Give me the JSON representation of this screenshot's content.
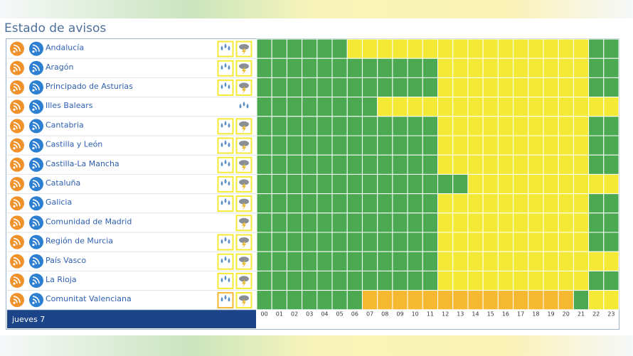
{
  "header": {
    "title": "Estado de avisos"
  },
  "footer": {
    "day": "jueves 7"
  },
  "hours": [
    "00",
    "01",
    "02",
    "03",
    "04",
    "05",
    "06",
    "07",
    "08",
    "09",
    "10",
    "11",
    "12",
    "13",
    "14",
    "15",
    "16",
    "17",
    "18",
    "19",
    "20",
    "21",
    "22",
    "23"
  ],
  "rows": [
    {
      "name": "Andalucía",
      "rain": "#f4e935",
      "storm": "#f4e935",
      "cells": [
        "#4aa951",
        "#4aa951",
        "#4aa951",
        "#4aa951",
        "#4aa951",
        "#4aa951",
        "#f4e935",
        "#f4e935",
        "#f4e935",
        "#f4e935",
        "#f4e935",
        "#f4e935",
        "#f4e935",
        "#f4e935",
        "#f4e935",
        "#f4e935",
        "#f4e935",
        "#f4e935",
        "#f4e935",
        "#f4e935",
        "#f4e935",
        "#f4e935",
        "#4aa951",
        "#4aa951"
      ]
    },
    {
      "name": "Aragón",
      "rain": "#f4e935",
      "storm": "#f4e935",
      "cells": [
        "#4aa951",
        "#4aa951",
        "#4aa951",
        "#4aa951",
        "#4aa951",
        "#4aa951",
        "#4aa951",
        "#4aa951",
        "#4aa951",
        "#4aa951",
        "#4aa951",
        "#4aa951",
        "#f4e935",
        "#f4e935",
        "#f4e935",
        "#f4e935",
        "#f4e935",
        "#f4e935",
        "#f4e935",
        "#f4e935",
        "#f4e935",
        "#f4e935",
        "#4aa951",
        "#4aa951"
      ]
    },
    {
      "name": "Principado de Asturias",
      "rain": "#f4e935",
      "storm": "#f4e935",
      "cells": [
        "#4aa951",
        "#4aa951",
        "#4aa951",
        "#4aa951",
        "#4aa951",
        "#4aa951",
        "#4aa951",
        "#4aa951",
        "#4aa951",
        "#4aa951",
        "#4aa951",
        "#4aa951",
        "#f4e935",
        "#f4e935",
        "#f4e935",
        "#f4e935",
        "#f4e935",
        "#f4e935",
        "#f4e935",
        "#f4e935",
        "#f4e935",
        "#f4e935",
        "#4aa951",
        "#4aa951"
      ]
    },
    {
      "name": "Illes Balears",
      "rain": "#ffffff",
      "storm": null,
      "cells": [
        "#4aa951",
        "#4aa951",
        "#4aa951",
        "#4aa951",
        "#4aa951",
        "#4aa951",
        "#4aa951",
        "#4aa951",
        "#f4e935",
        "#f4e935",
        "#f4e935",
        "#f4e935",
        "#f4e935",
        "#f4e935",
        "#f4e935",
        "#f4e935",
        "#f4e935",
        "#f4e935",
        "#f4e935",
        "#f4e935",
        "#f4e935",
        "#f4e935",
        "#f4e935",
        "#f4e935"
      ]
    },
    {
      "name": "Cantabria",
      "rain": "#f4e935",
      "storm": "#f4e935",
      "cells": [
        "#4aa951",
        "#4aa951",
        "#4aa951",
        "#4aa951",
        "#4aa951",
        "#4aa951",
        "#4aa951",
        "#4aa951",
        "#4aa951",
        "#4aa951",
        "#4aa951",
        "#4aa951",
        "#f4e935",
        "#f4e935",
        "#f4e935",
        "#f4e935",
        "#f4e935",
        "#f4e935",
        "#f4e935",
        "#f4e935",
        "#f4e935",
        "#f4e935",
        "#4aa951",
        "#4aa951"
      ]
    },
    {
      "name": "Castilla y León",
      "rain": "#f4e935",
      "storm": "#f4e935",
      "cells": [
        "#4aa951",
        "#4aa951",
        "#4aa951",
        "#4aa951",
        "#4aa951",
        "#4aa951",
        "#4aa951",
        "#4aa951",
        "#4aa951",
        "#4aa951",
        "#4aa951",
        "#4aa951",
        "#f4e935",
        "#f4e935",
        "#f4e935",
        "#f4e935",
        "#f4e935",
        "#f4e935",
        "#f4e935",
        "#f4e935",
        "#f4e935",
        "#f4e935",
        "#4aa951",
        "#4aa951"
      ]
    },
    {
      "name": "Castilla-La Mancha",
      "rain": "#f4e935",
      "storm": "#f4e935",
      "cells": [
        "#4aa951",
        "#4aa951",
        "#4aa951",
        "#4aa951",
        "#4aa951",
        "#4aa951",
        "#4aa951",
        "#4aa951",
        "#4aa951",
        "#4aa951",
        "#4aa951",
        "#4aa951",
        "#f4e935",
        "#f4e935",
        "#f4e935",
        "#f4e935",
        "#f4e935",
        "#f4e935",
        "#f4e935",
        "#f4e935",
        "#f4e935",
        "#f4e935",
        "#4aa951",
        "#4aa951"
      ]
    },
    {
      "name": "Cataluña",
      "rain": "#f4e935",
      "storm": "#f4e935",
      "cells": [
        "#4aa951",
        "#4aa951",
        "#4aa951",
        "#4aa951",
        "#4aa951",
        "#4aa951",
        "#4aa951",
        "#4aa951",
        "#4aa951",
        "#4aa951",
        "#4aa951",
        "#4aa951",
        "#4aa951",
        "#4aa951",
        "#f4e935",
        "#f4e935",
        "#f4e935",
        "#f4e935",
        "#f4e935",
        "#f4e935",
        "#f4e935",
        "#f4e935",
        "#f4e935",
        "#f4e935"
      ]
    },
    {
      "name": "Galicia",
      "rain": "#f4e935",
      "storm": "#f4e935",
      "cells": [
        "#4aa951",
        "#4aa951",
        "#4aa951",
        "#4aa951",
        "#4aa951",
        "#4aa951",
        "#4aa951",
        "#4aa951",
        "#4aa951",
        "#4aa951",
        "#4aa951",
        "#4aa951",
        "#f4e935",
        "#f4e935",
        "#f4e935",
        "#f4e935",
        "#f4e935",
        "#f4e935",
        "#f4e935",
        "#f4e935",
        "#f4e935",
        "#f4e935",
        "#4aa951",
        "#4aa951"
      ]
    },
    {
      "name": "Comunidad de Madrid",
      "rain": null,
      "storm": "#f4e935",
      "cells": [
        "#4aa951",
        "#4aa951",
        "#4aa951",
        "#4aa951",
        "#4aa951",
        "#4aa951",
        "#4aa951",
        "#4aa951",
        "#4aa951",
        "#4aa951",
        "#4aa951",
        "#4aa951",
        "#f4e935",
        "#f4e935",
        "#f4e935",
        "#f4e935",
        "#f4e935",
        "#f4e935",
        "#f4e935",
        "#f4e935",
        "#f4e935",
        "#f4e935",
        "#4aa951",
        "#4aa951"
      ]
    },
    {
      "name": "Región de Murcia",
      "rain": "#f4e935",
      "storm": "#f4e935",
      "cells": [
        "#4aa951",
        "#4aa951",
        "#4aa951",
        "#4aa951",
        "#4aa951",
        "#4aa951",
        "#4aa951",
        "#4aa951",
        "#4aa951",
        "#4aa951",
        "#4aa951",
        "#4aa951",
        "#f4e935",
        "#f4e935",
        "#f4e935",
        "#f4e935",
        "#f4e935",
        "#f4e935",
        "#f4e935",
        "#f4e935",
        "#f4e935",
        "#f4e935",
        "#4aa951",
        "#4aa951"
      ]
    },
    {
      "name": "País Vasco",
      "rain": "#f4e935",
      "storm": "#f4e935",
      "cells": [
        "#4aa951",
        "#4aa951",
        "#4aa951",
        "#4aa951",
        "#4aa951",
        "#4aa951",
        "#4aa951",
        "#4aa951",
        "#4aa951",
        "#4aa951",
        "#4aa951",
        "#4aa951",
        "#f4e935",
        "#f4e935",
        "#f4e935",
        "#f4e935",
        "#f4e935",
        "#f4e935",
        "#f4e935",
        "#f4e935",
        "#f4e935",
        "#f4e935",
        "#f4e935",
        "#f4e935"
      ]
    },
    {
      "name": "La Rioja",
      "rain": "#f4e935",
      "storm": "#f4e935",
      "cells": [
        "#4aa951",
        "#4aa951",
        "#4aa951",
        "#4aa951",
        "#4aa951",
        "#4aa951",
        "#4aa951",
        "#4aa951",
        "#4aa951",
        "#4aa951",
        "#4aa951",
        "#4aa951",
        "#f4e935",
        "#f4e935",
        "#f4e935",
        "#f4e935",
        "#f4e935",
        "#f4e935",
        "#f4e935",
        "#f4e935",
        "#f4e935",
        "#f4e935",
        "#4aa951",
        "#4aa951"
      ]
    },
    {
      "name": "Comunitat Valenciana",
      "rain": "#f6b731",
      "storm": "#f4e935",
      "cells": [
        "#4aa951",
        "#4aa951",
        "#4aa951",
        "#4aa951",
        "#4aa951",
        "#4aa951",
        "#4aa951",
        "#f6b731",
        "#f6b731",
        "#f6b731",
        "#f6b731",
        "#f6b731",
        "#f6b731",
        "#f6b731",
        "#f6b731",
        "#f6b731",
        "#f6b731",
        "#f6b731",
        "#f6b731",
        "#f6b731",
        "#f6b731",
        "#4aa951",
        "#f4e935",
        "#f4e935"
      ]
    }
  ]
}
